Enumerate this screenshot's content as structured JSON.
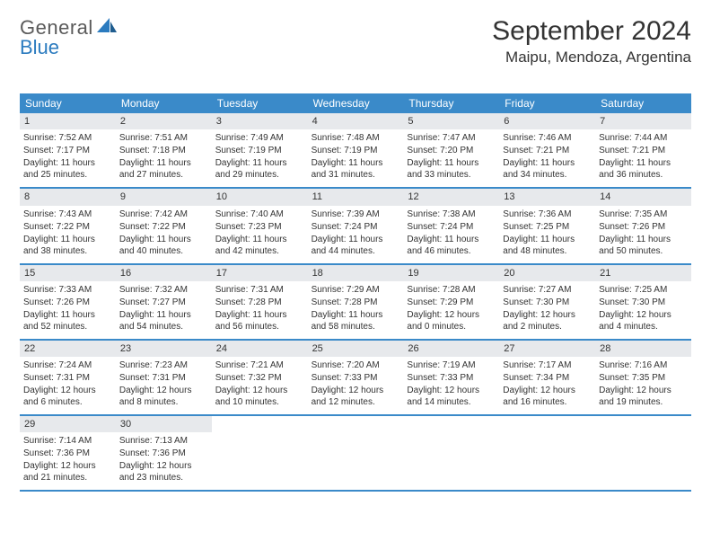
{
  "logo": {
    "text1": "General",
    "text2": "Blue"
  },
  "title": "September 2024",
  "location": "Maipu, Mendoza, Argentina",
  "colors": {
    "header_bg": "#3a8ac9",
    "header_text": "#ffffff",
    "daynum_bg": "#e7e9ec",
    "row_border": "#3a8ac9",
    "body_text": "#333333",
    "logo_gray": "#5a5a5a",
    "logo_blue": "#2b7bbf",
    "page_bg": "#ffffff"
  },
  "dow": [
    "Sunday",
    "Monday",
    "Tuesday",
    "Wednesday",
    "Thursday",
    "Friday",
    "Saturday"
  ],
  "weeks": [
    [
      {
        "n": "1",
        "sr": "7:52 AM",
        "ss": "7:17 PM",
        "dl": "11 hours and 25 minutes."
      },
      {
        "n": "2",
        "sr": "7:51 AM",
        "ss": "7:18 PM",
        "dl": "11 hours and 27 minutes."
      },
      {
        "n": "3",
        "sr": "7:49 AM",
        "ss": "7:19 PM",
        "dl": "11 hours and 29 minutes."
      },
      {
        "n": "4",
        "sr": "7:48 AM",
        "ss": "7:19 PM",
        "dl": "11 hours and 31 minutes."
      },
      {
        "n": "5",
        "sr": "7:47 AM",
        "ss": "7:20 PM",
        "dl": "11 hours and 33 minutes."
      },
      {
        "n": "6",
        "sr": "7:46 AM",
        "ss": "7:21 PM",
        "dl": "11 hours and 34 minutes."
      },
      {
        "n": "7",
        "sr": "7:44 AM",
        "ss": "7:21 PM",
        "dl": "11 hours and 36 minutes."
      }
    ],
    [
      {
        "n": "8",
        "sr": "7:43 AM",
        "ss": "7:22 PM",
        "dl": "11 hours and 38 minutes."
      },
      {
        "n": "9",
        "sr": "7:42 AM",
        "ss": "7:22 PM",
        "dl": "11 hours and 40 minutes."
      },
      {
        "n": "10",
        "sr": "7:40 AM",
        "ss": "7:23 PM",
        "dl": "11 hours and 42 minutes."
      },
      {
        "n": "11",
        "sr": "7:39 AM",
        "ss": "7:24 PM",
        "dl": "11 hours and 44 minutes."
      },
      {
        "n": "12",
        "sr": "7:38 AM",
        "ss": "7:24 PM",
        "dl": "11 hours and 46 minutes."
      },
      {
        "n": "13",
        "sr": "7:36 AM",
        "ss": "7:25 PM",
        "dl": "11 hours and 48 minutes."
      },
      {
        "n": "14",
        "sr": "7:35 AM",
        "ss": "7:26 PM",
        "dl": "11 hours and 50 minutes."
      }
    ],
    [
      {
        "n": "15",
        "sr": "7:33 AM",
        "ss": "7:26 PM",
        "dl": "11 hours and 52 minutes."
      },
      {
        "n": "16",
        "sr": "7:32 AM",
        "ss": "7:27 PM",
        "dl": "11 hours and 54 minutes."
      },
      {
        "n": "17",
        "sr": "7:31 AM",
        "ss": "7:28 PM",
        "dl": "11 hours and 56 minutes."
      },
      {
        "n": "18",
        "sr": "7:29 AM",
        "ss": "7:28 PM",
        "dl": "11 hours and 58 minutes."
      },
      {
        "n": "19",
        "sr": "7:28 AM",
        "ss": "7:29 PM",
        "dl": "12 hours and 0 minutes."
      },
      {
        "n": "20",
        "sr": "7:27 AM",
        "ss": "7:30 PM",
        "dl": "12 hours and 2 minutes."
      },
      {
        "n": "21",
        "sr": "7:25 AM",
        "ss": "7:30 PM",
        "dl": "12 hours and 4 minutes."
      }
    ],
    [
      {
        "n": "22",
        "sr": "7:24 AM",
        "ss": "7:31 PM",
        "dl": "12 hours and 6 minutes."
      },
      {
        "n": "23",
        "sr": "7:23 AM",
        "ss": "7:31 PM",
        "dl": "12 hours and 8 minutes."
      },
      {
        "n": "24",
        "sr": "7:21 AM",
        "ss": "7:32 PM",
        "dl": "12 hours and 10 minutes."
      },
      {
        "n": "25",
        "sr": "7:20 AM",
        "ss": "7:33 PM",
        "dl": "12 hours and 12 minutes."
      },
      {
        "n": "26",
        "sr": "7:19 AM",
        "ss": "7:33 PM",
        "dl": "12 hours and 14 minutes."
      },
      {
        "n": "27",
        "sr": "7:17 AM",
        "ss": "7:34 PM",
        "dl": "12 hours and 16 minutes."
      },
      {
        "n": "28",
        "sr": "7:16 AM",
        "ss": "7:35 PM",
        "dl": "12 hours and 19 minutes."
      }
    ],
    [
      {
        "n": "29",
        "sr": "7:14 AM",
        "ss": "7:36 PM",
        "dl": "12 hours and 21 minutes."
      },
      {
        "n": "30",
        "sr": "7:13 AM",
        "ss": "7:36 PM",
        "dl": "12 hours and 23 minutes."
      },
      null,
      null,
      null,
      null,
      null
    ]
  ],
  "labels": {
    "sunrise": "Sunrise: ",
    "sunset": "Sunset: ",
    "daylight": "Daylight: "
  }
}
